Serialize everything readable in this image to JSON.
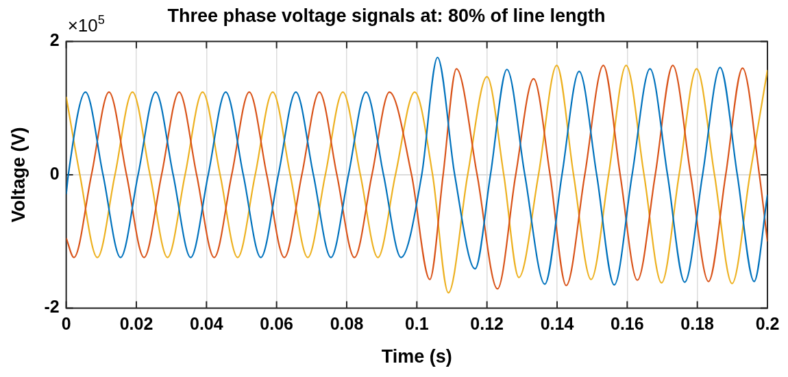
{
  "chart_data": {
    "type": "line",
    "title": "Three phase voltage signals at: 80% of line length",
    "xlabel": "Time (s)",
    "ylabel": "Voltage (V)",
    "annotations": [
      "×10$^{5}$"
    ],
    "xlim": [
      0,
      0.2
    ],
    "xticks": [
      0,
      0.02,
      0.04,
      0.06,
      0.08,
      0.1,
      0.12,
      0.14,
      0.16,
      0.18,
      0.2
    ],
    "ylim": [
      -2,
      2
    ],
    "yticks": [
      -2,
      0,
      2
    ],
    "grid": true,
    "legend": false,
    "series": [
      {
        "color": "#0072bd",
        "x": [
          0,
          0.0006,
          0.0055,
          0.0105,
          0.0155,
          0.0205,
          0.0255,
          0.0305,
          0.0355,
          0.0405,
          0.0455,
          0.0505,
          0.0555,
          0.0605,
          0.0655,
          0.0705,
          0.0755,
          0.0805,
          0.0855,
          0.0905,
          0.0955,
          0.1014,
          0.1059,
          0.1108,
          0.1166,
          0.121,
          0.1257,
          0.1308,
          0.1365,
          0.1414,
          0.1463,
          0.1513,
          0.1563,
          0.1614,
          0.1665,
          0.1715,
          0.1764,
          0.1815,
          0.1865,
          0.1914,
          0.1962,
          0.2
        ],
        "values": [
          -0.29,
          0,
          1.24,
          0,
          -1.24,
          0,
          1.24,
          0,
          -1.24,
          0,
          1.24,
          0,
          -1.24,
          0,
          1.24,
          0,
          -1.24,
          0,
          1.24,
          0,
          -1.24,
          0,
          1.76,
          0,
          -1.41,
          0,
          1.58,
          0,
          -1.64,
          0,
          1.55,
          0,
          -1.65,
          0,
          1.59,
          0,
          -1.61,
          0,
          1.61,
          0,
          -1.6,
          -0.3
        ]
      },
      {
        "color": "#d95319",
        "x": [
          0,
          0.0022,
          0.0072,
          0.0122,
          0.0172,
          0.0222,
          0.0272,
          0.0322,
          0.0372,
          0.0422,
          0.0472,
          0.0522,
          0.0572,
          0.0622,
          0.0672,
          0.0722,
          0.0772,
          0.0822,
          0.0872,
          0.0922,
          0.0985,
          0.1037,
          0.1075,
          0.1113,
          0.1172,
          0.123,
          0.1282,
          0.1333,
          0.138,
          0.1426,
          0.1479,
          0.1532,
          0.158,
          0.1629,
          0.168,
          0.173,
          0.1781,
          0.1832,
          0.1881,
          0.1929,
          0.1977,
          0.2
        ],
        "values": [
          -0.95,
          -1.24,
          0,
          1.24,
          0,
          -1.24,
          0,
          1.24,
          0,
          -1.24,
          0,
          1.24,
          0,
          -1.24,
          0,
          1.24,
          0,
          -1.24,
          0,
          1.24,
          0,
          -1.57,
          0,
          1.59,
          0,
          -1.71,
          0,
          1.44,
          0,
          -1.66,
          0,
          1.64,
          0,
          -1.58,
          0,
          1.64,
          0,
          -1.6,
          0,
          1.6,
          0,
          -1.0
        ]
      },
      {
        "color": "#edb120",
        "x": [
          0,
          0.0039,
          0.0089,
          0.0139,
          0.0189,
          0.0239,
          0.0289,
          0.0339,
          0.0389,
          0.0439,
          0.0489,
          0.0539,
          0.0589,
          0.0639,
          0.0689,
          0.0739,
          0.0789,
          0.0839,
          0.0889,
          0.0939,
          0.0994,
          0.1045,
          0.109,
          0.1145,
          0.12,
          0.1248,
          0.1291,
          0.1347,
          0.1399,
          0.1447,
          0.1497,
          0.1547,
          0.1597,
          0.1648,
          0.1698,
          0.1748,
          0.1798,
          0.1849,
          0.1899,
          0.195,
          0.2
        ],
        "values": [
          1.17,
          0,
          -1.24,
          0,
          1.24,
          0,
          -1.24,
          0,
          1.24,
          0,
          -1.24,
          0,
          1.24,
          0,
          -1.24,
          0,
          1.24,
          0,
          -1.24,
          0,
          1.24,
          0,
          -1.77,
          0,
          1.47,
          0,
          -1.54,
          0,
          1.64,
          0,
          -1.57,
          0,
          1.64,
          0,
          -1.62,
          0,
          1.59,
          0,
          -1.63,
          0,
          1.57
        ]
      }
    ]
  }
}
